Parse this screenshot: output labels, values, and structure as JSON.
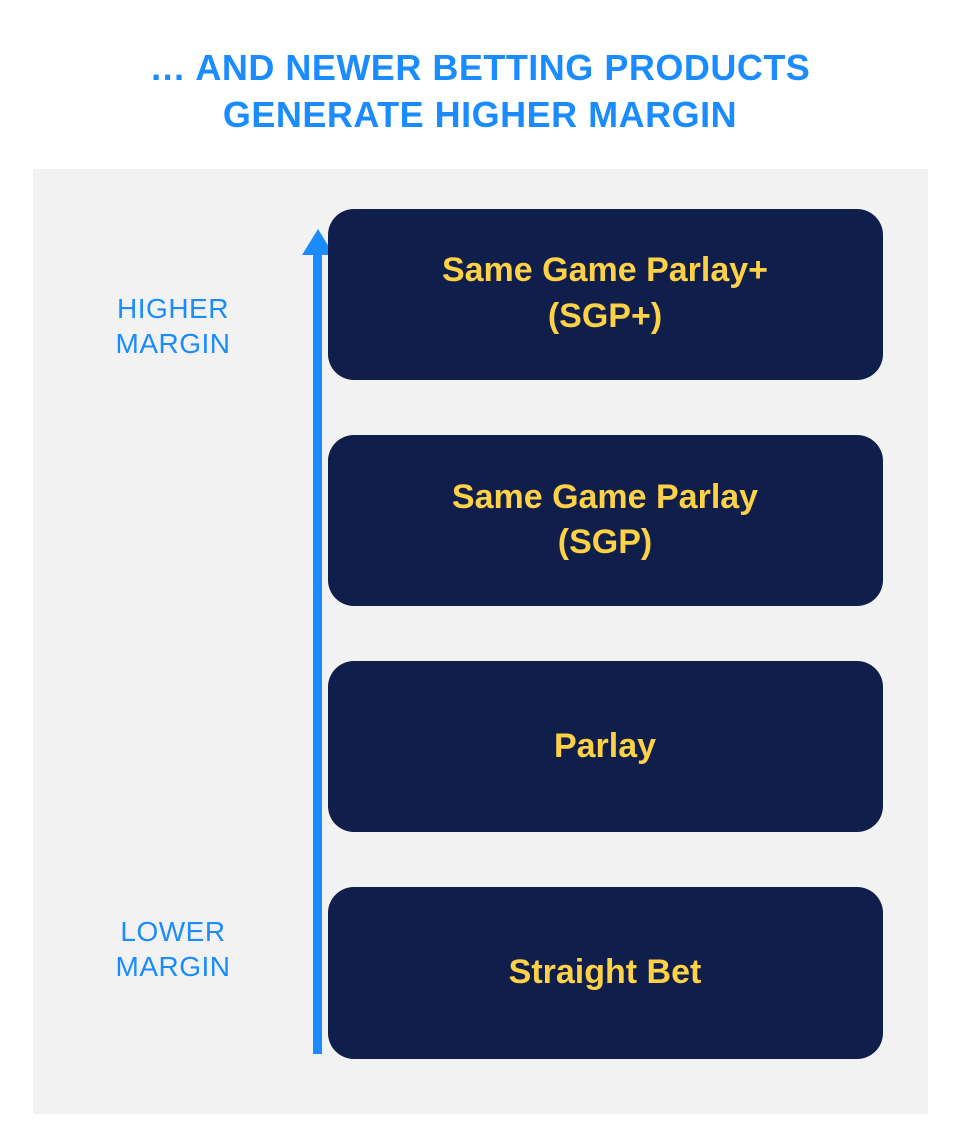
{
  "title": {
    "line1": "… AND NEWER BETTING PRODUCTS",
    "line2": "GENERATE HIGHER MARGIN",
    "color": "#1a8cff",
    "fontsize": 36
  },
  "panel": {
    "background_color": "#f2f2f2"
  },
  "axis": {
    "top_label_line1": "HIGHER",
    "top_label_line2": "MARGIN",
    "bottom_label_line1": "LOWER",
    "bottom_label_line2": "MARGIN",
    "label_color": "#1a8cff",
    "label_fontsize": 28,
    "arrow_color": "#1a8cff",
    "arrow_shaft_width": 9,
    "arrow_head_height": 26
  },
  "products": [
    {
      "label_line1": "Same Game Parlay+",
      "label_line2": "(SGP+)"
    },
    {
      "label_line1": "Same Game Parlay",
      "label_line2": "(SGP)"
    },
    {
      "label_line1": "Parlay",
      "label_line2": ""
    },
    {
      "label_line1": "Straight Bet",
      "label_line2": ""
    }
  ],
  "product_style": {
    "box_bg_color": "#0f1e4a",
    "text_color": "#ffd147",
    "fontsize": 34,
    "border_radius": 26
  }
}
